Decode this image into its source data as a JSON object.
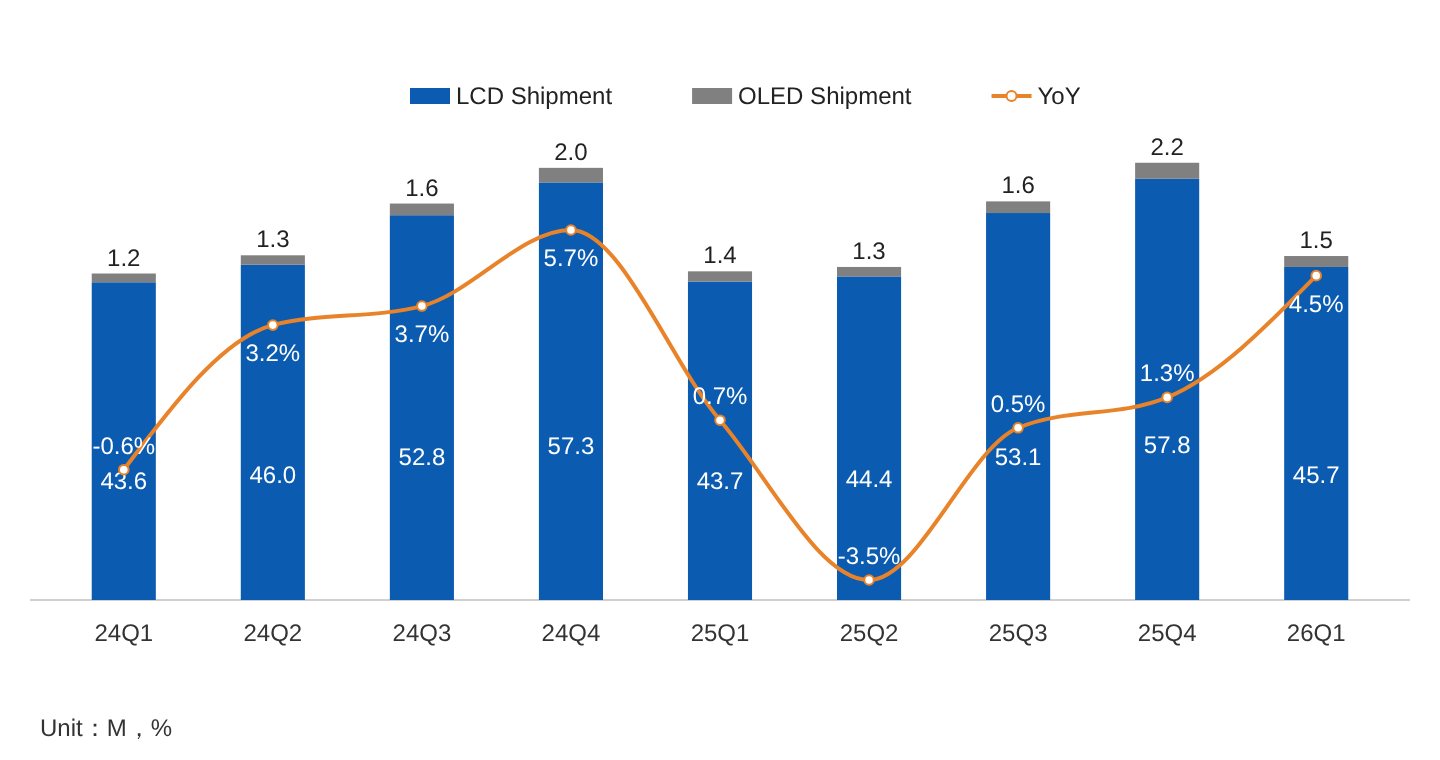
{
  "chart_data": {
    "type": "bar",
    "stacked": true,
    "legend": "top",
    "annotations": [
      "Unit：M，%"
    ],
    "categories": [
      "24Q1",
      "24Q2",
      "24Q3",
      "24Q4",
      "25Q1",
      "25Q2",
      "25Q3",
      "25Q4",
      "26Q1"
    ],
    "series": [
      {
        "name": "LCD Shipment",
        "color": "#0b5cb0",
        "values": [
          43.6,
          46.0,
          52.8,
          57.3,
          43.7,
          44.4,
          53.1,
          57.8,
          45.7
        ],
        "value_labels": [
          "43.6",
          "46.0",
          "52.8",
          "57.3",
          "43.7",
          "44.4",
          "53.1",
          "57.8",
          "45.7"
        ]
      },
      {
        "name": "OLED Shipment",
        "color": "#808080",
        "values": [
          1.2,
          1.3,
          1.6,
          2.0,
          1.4,
          1.3,
          1.6,
          2.2,
          1.5
        ],
        "value_labels": [
          "1.2",
          "1.3",
          "1.6",
          "2.0",
          "1.4",
          "1.3",
          "1.6",
          "2.2",
          "1.5"
        ]
      },
      {
        "name": "YoY",
        "type": "line",
        "axis": "y2",
        "color": "#e8832a",
        "marker": "circle",
        "values": [
          -0.6,
          3.2,
          3.7,
          5.7,
          0.7,
          -3.5,
          0.5,
          1.3,
          4.5
        ],
        "value_labels": [
          "-0.6%",
          "3.2%",
          "3.7%",
          "5.7%",
          "0.7%",
          "-3.5%",
          "0.5%",
          "1.3%",
          "4.5%"
        ]
      }
    ]
  }
}
